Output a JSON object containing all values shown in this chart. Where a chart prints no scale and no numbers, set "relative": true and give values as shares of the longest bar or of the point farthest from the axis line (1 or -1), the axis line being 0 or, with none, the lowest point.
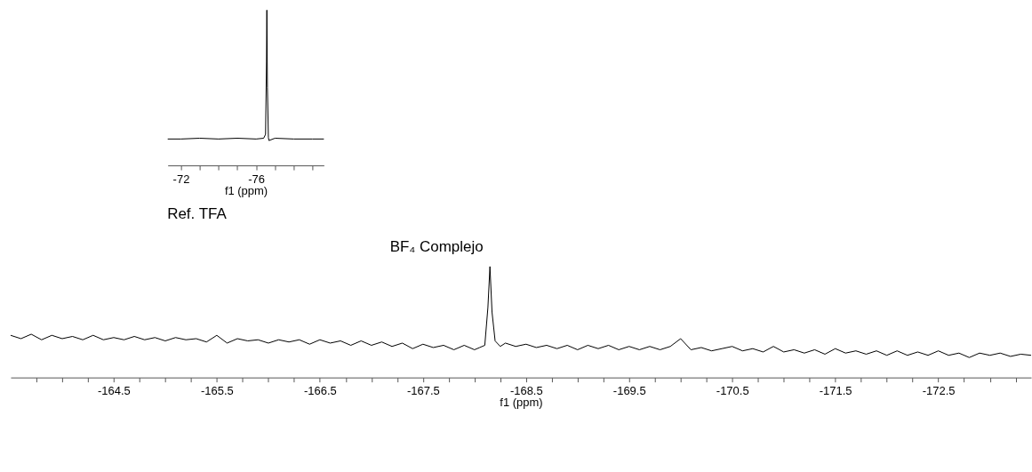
{
  "chart_data": [
    {
      "type": "line",
      "title": "Ref. TFA",
      "xlabel": "f1 (ppm)",
      "relative": true,
      "xlim": [
        -71.3,
        -79.6
      ],
      "xticks": [
        -72,
        {
          "value": -73,
          "label": null
        },
        {
          "value": -74,
          "label": null
        },
        {
          "value": -75,
          "label": null
        },
        -76,
        {
          "value": -77,
          "label": null
        },
        {
          "value": -78,
          "label": null
        },
        {
          "value": -79,
          "label": null
        }
      ],
      "series": [
        {
          "color": "#000000",
          "x": [
            -71.3,
            -72,
            -73,
            -74,
            -75,
            -76,
            -76.4,
            -76.5,
            -76.55,
            -76.57,
            -76.6,
            -76.65,
            -76.68,
            -77,
            -78,
            -79,
            -79.6
          ],
          "values": [
            0.17,
            0.17,
            0.175,
            0.17,
            0.175,
            0.17,
            0.175,
            0.2,
            0.67,
            1,
            0.5,
            0.18,
            0.16,
            0.175,
            0.17,
            0.17,
            0.17
          ]
        }
      ]
    },
    {
      "type": "line",
      "title": "BF₄ Complejo",
      "xlabel": "f1 (ppm)",
      "relative": true,
      "xlim": [
        -163.5,
        -173.4
      ],
      "xticks": [
        {
          "value": -163.75,
          "label": null
        },
        {
          "value": -164,
          "label": null
        },
        {
          "value": -164.25,
          "label": null
        },
        -164.5,
        {
          "value": -164.75,
          "label": null
        },
        {
          "value": -165,
          "label": null
        },
        {
          "value": -165.25,
          "label": null
        },
        -165.5,
        {
          "value": -165.75,
          "label": null
        },
        {
          "value": -166,
          "label": null
        },
        {
          "value": -166.25,
          "label": null
        },
        -166.5,
        {
          "value": -166.75,
          "label": null
        },
        {
          "value": -167,
          "label": null
        },
        {
          "value": -167.25,
          "label": null
        },
        -167.5,
        {
          "value": -167.75,
          "label": null
        },
        {
          "value": -168,
          "label": null
        },
        {
          "value": -168.25,
          "label": null
        },
        -168.5,
        {
          "value": -168.75,
          "label": null
        },
        {
          "value": -169,
          "label": null
        },
        {
          "value": -169.25,
          "label": null
        },
        -169.5,
        {
          "value": -169.75,
          "label": null
        },
        {
          "value": -170,
          "label": null
        },
        {
          "value": -170.25,
          "label": null
        },
        -170.5,
        {
          "value": -170.75,
          "label": null
        },
        {
          "value": -171,
          "label": null
        },
        {
          "value": -171.25,
          "label": null
        },
        -171.5,
        {
          "value": -171.75,
          "label": null
        },
        {
          "value": -172,
          "label": null
        },
        {
          "value": -172.25,
          "label": null
        },
        -172.5,
        {
          "value": -172.75,
          "label": null
        },
        {
          "value": -173,
          "label": null
        },
        {
          "value": -173.25,
          "label": null
        }
      ],
      "series": [
        {
          "color": "#000000",
          "x": [
            -163.5,
            -163.6,
            -163.7,
            -163.8,
            -163.9,
            -164.0,
            -164.1,
            -164.2,
            -164.3,
            -164.4,
            -164.5,
            -164.6,
            -164.7,
            -164.8,
            -164.9,
            -165.0,
            -165.1,
            -165.2,
            -165.3,
            -165.4,
            -165.5,
            -165.6,
            -165.7,
            -165.8,
            -165.9,
            -166.0,
            -166.1,
            -166.2,
            -166.3,
            -166.4,
            -166.5,
            -166.6,
            -166.7,
            -166.8,
            -166.9,
            -167.0,
            -167.1,
            -167.2,
            -167.3,
            -167.4,
            -167.5,
            -167.6,
            -167.7,
            -167.8,
            -167.9,
            -168.0,
            -168.05,
            -168.1,
            -168.13,
            -168.15,
            -168.17,
            -168.2,
            -168.25,
            -168.3,
            -168.4,
            -168.5,
            -168.6,
            -168.7,
            -168.8,
            -168.9,
            -169.0,
            -169.1,
            -169.2,
            -169.3,
            -169.4,
            -169.5,
            -169.6,
            -169.7,
            -169.8,
            -169.9,
            -170.0,
            -170.1,
            -170.2,
            -170.3,
            -170.4,
            -170.5,
            -170.6,
            -170.7,
            -170.8,
            -170.9,
            -171.0,
            -171.1,
            -171.2,
            -171.3,
            -171.4,
            -171.5,
            -171.6,
            -171.7,
            -171.8,
            -171.9,
            -172.0,
            -172.1,
            -172.2,
            -172.3,
            -172.4,
            -172.5,
            -172.6,
            -172.7,
            -172.8,
            -172.9,
            -173.0,
            -173.1,
            -173.2,
            -173.3,
            -173.4
          ],
          "values": [
            0.38,
            0.35,
            0.39,
            0.34,
            0.38,
            0.35,
            0.37,
            0.34,
            0.38,
            0.34,
            0.36,
            0.34,
            0.37,
            0.34,
            0.36,
            0.33,
            0.36,
            0.34,
            0.35,
            0.32,
            0.38,
            0.31,
            0.35,
            0.33,
            0.34,
            0.31,
            0.34,
            0.32,
            0.34,
            0.3,
            0.34,
            0.31,
            0.33,
            0.29,
            0.33,
            0.29,
            0.32,
            0.28,
            0.31,
            0.26,
            0.3,
            0.27,
            0.29,
            0.25,
            0.29,
            0.25,
            0.27,
            0.29,
            0.63,
            1,
            0.59,
            0.33,
            0.28,
            0.31,
            0.28,
            0.3,
            0.27,
            0.29,
            0.26,
            0.29,
            0.25,
            0.29,
            0.26,
            0.29,
            0.25,
            0.28,
            0.25,
            0.28,
            0.25,
            0.28,
            0.35,
            0.25,
            0.27,
            0.24,
            0.26,
            0.28,
            0.24,
            0.26,
            0.23,
            0.28,
            0.23,
            0.25,
            0.22,
            0.25,
            0.21,
            0.26,
            0.22,
            0.24,
            0.21,
            0.24,
            0.2,
            0.24,
            0.2,
            0.23,
            0.2,
            0.24,
            0.2,
            0.22,
            0.18,
            0.22,
            0.2,
            0.22,
            0.19,
            0.21,
            0.2
          ]
        }
      ]
    }
  ]
}
